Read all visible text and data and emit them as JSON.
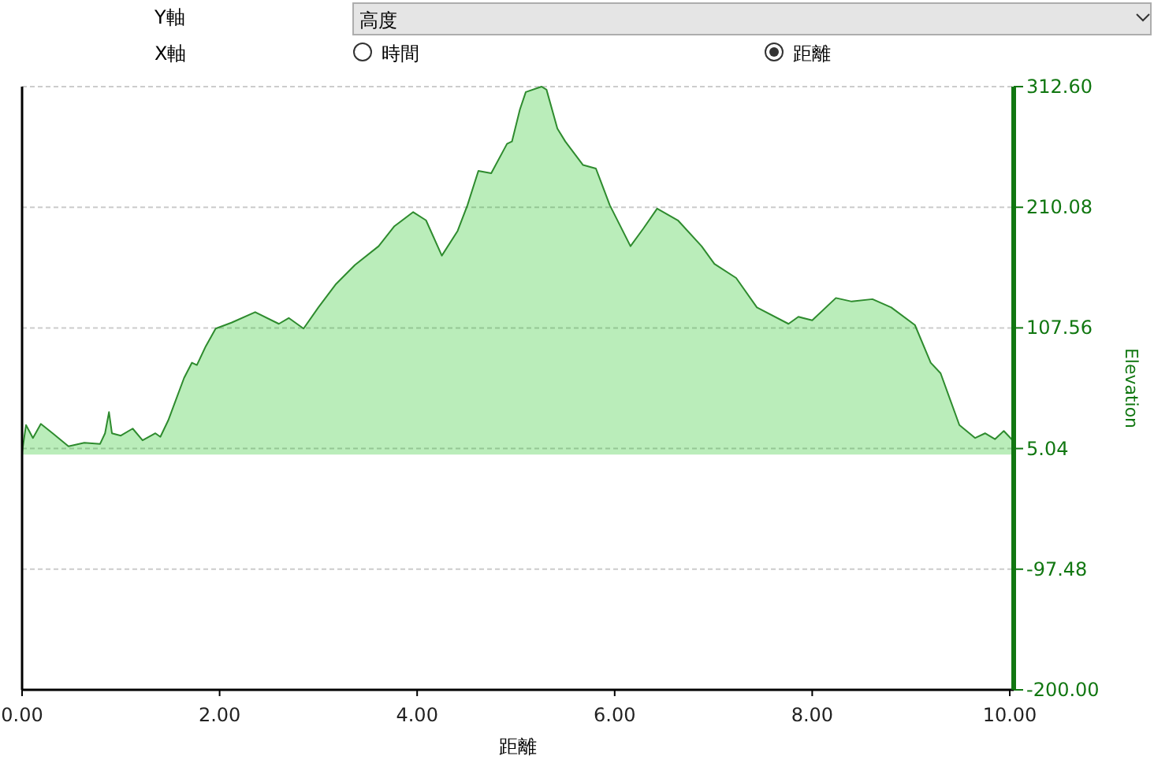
{
  "chart_data": {
    "type": "area",
    "xlabel": "距離",
    "ylabel": "Elevation",
    "annotations": [
      "Y軸",
      "高度",
      "X軸",
      "時間",
      "距離"
    ],
    "x": [
      0.0,
      0.04,
      0.11,
      0.19,
      0.31,
      0.47,
      0.63,
      0.79,
      0.84,
      0.88,
      0.91,
      1.0,
      1.12,
      1.22,
      1.35,
      1.4,
      1.48,
      1.64,
      1.72,
      1.77,
      1.86,
      1.96,
      2.12,
      2.36,
      2.6,
      2.7,
      2.85,
      3.0,
      3.18,
      3.37,
      3.61,
      3.77,
      3.96,
      4.09,
      4.25,
      4.41,
      4.51,
      4.62,
      4.75,
      4.91,
      4.96,
      5.04,
      5.1,
      5.26,
      5.31,
      5.42,
      5.5,
      5.68,
      5.81,
      5.95,
      6.16,
      6.29,
      6.43,
      6.64,
      6.88,
      7.01,
      7.23,
      7.44,
      7.76,
      7.86,
      8.0,
      8.24,
      8.4,
      8.61,
      8.8,
      9.04,
      9.2,
      9.3,
      9.49,
      9.65,
      9.75,
      9.85,
      9.94,
      10.03
    ],
    "series": [
      {
        "color": "#2e8b2e",
        "values": [
          2,
          25,
          14,
          26,
          18,
          7,
          10,
          9,
          18,
          36,
          18,
          16,
          22,
          12,
          18,
          15,
          29,
          65,
          78,
          76,
          92,
          107,
          112,
          121,
          111,
          116,
          107,
          125,
          145,
          161,
          177,
          194,
          206,
          199,
          169,
          190,
          212,
          241,
          239,
          264,
          266,
          293,
          308,
          312.6,
          310,
          277,
          266,
          246,
          243,
          212,
          177,
          192,
          209,
          199,
          177,
          162,
          150,
          125,
          111,
          117,
          114,
          133,
          130,
          132,
          125,
          110,
          78,
          69,
          25,
          14,
          18,
          13,
          20,
          12
        ]
      }
    ],
    "xlim": [
      0,
      10.04
    ],
    "ylim": [
      -200,
      312.6
    ],
    "xticks": [
      {
        "value": 0,
        "label": "0.00"
      },
      {
        "value": 2,
        "label": "2.00"
      },
      {
        "value": 4,
        "label": "4.00"
      },
      {
        "value": 6,
        "label": "6.00"
      },
      {
        "value": 8,
        "label": "8.00"
      },
      {
        "value": 10,
        "label": "10.00"
      }
    ],
    "yticks": [
      {
        "value": -200,
        "label": "-200.00"
      },
      -97.48,
      5.04,
      107.56,
      210.08,
      {
        "value": 312.6,
        "label": "312.60"
      }
    ],
    "grid": "y"
  }
}
